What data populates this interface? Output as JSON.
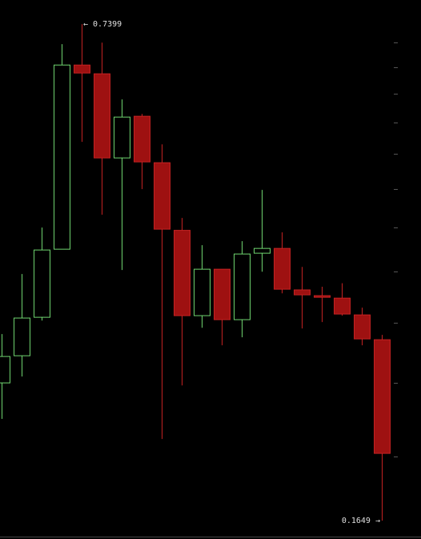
{
  "chart_data": {
    "type": "candlestick",
    "log_scale": true,
    "ylim": [
      0.156,
      0.796
    ],
    "yticks": [
      0.2,
      0.25,
      0.3,
      0.35,
      0.4,
      0.45,
      0.5,
      0.55,
      0.6,
      0.65,
      0.7
    ],
    "up_color": "#6fd46f",
    "down_color": "#9e1111",
    "categories": [
      null,
      null,
      null,
      null,
      null,
      null,
      null,
      null,
      null,
      null,
      null,
      null,
      null,
      null,
      null,
      null,
      null,
      null,
      null,
      null
    ],
    "open": [
      0.2501,
      0.2715,
      0.305,
      0.3747,
      0.6539,
      0.6368,
      0.4938,
      0.5601,
      0.4867,
      0.3967,
      0.3065,
      0.3527,
      0.3028,
      0.3702,
      0.3756,
      0.3313,
      0.3256,
      0.3232,
      0.3072,
      0.285
    ],
    "high": [
      0.2899,
      0.3476,
      0.4,
      0.6965,
      0.7399,
      0.6998,
      0.5893,
      0.5641,
      0.5145,
      0.4118,
      0.3793,
      0.3527,
      0.3839,
      0.4482,
      0.3943,
      0.3552,
      0.3345,
      0.3381,
      0.314,
      0.2892
    ],
    "low": [
      0.2243,
      0.255,
      0.302,
      0.3747,
      0.5183,
      0.4158,
      0.3518,
      0.4494,
      0.2111,
      0.2482,
      0.2955,
      0.2802,
      0.2871,
      0.3501,
      0.3279,
      0.2948,
      0.3006,
      0.3065,
      0.2802,
      0.1649
    ],
    "close": [
      0.2709,
      0.3043,
      0.3738,
      0.6539,
      0.6383,
      0.4938,
      0.5587,
      0.4879,
      0.3981,
      0.3065,
      0.3527,
      0.3028,
      0.3693,
      0.3756,
      0.332,
      0.3264,
      0.324,
      0.308,
      0.2857,
      0.2021
    ],
    "annotations": [
      {
        "text": "← 0.7399",
        "value": 0.7399
      },
      {
        "text": "0.1649 →",
        "value": 0.1649
      }
    ]
  }
}
